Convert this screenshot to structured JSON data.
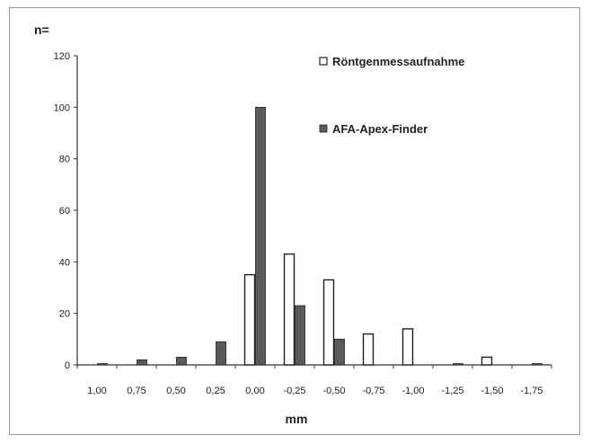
{
  "chart_data": {
    "type": "bar",
    "ylabel": "n=",
    "xlabel": "mm",
    "categories": [
      "1,00",
      "0,75",
      "0,50",
      "0,25",
      "0,00",
      "-0,25",
      "-0,50",
      "-0,75",
      "-1,00",
      "-1,25",
      "-1,50",
      "-1,75"
    ],
    "y_ticks": [
      "0",
      "20",
      "40",
      "60",
      "80",
      "100",
      "120"
    ],
    "ylim": [
      0,
      120
    ],
    "grid": false,
    "legend_position": "top-right",
    "series": [
      {
        "name": "Röntgenmessaufnahme",
        "color": "#ffffff",
        "values": [
          0,
          0,
          0,
          0,
          35,
          43,
          33,
          12,
          14,
          0,
          3,
          0
        ]
      },
      {
        "name": "AFA-Apex-Finder",
        "color": "#5a5a5a",
        "values": [
          0.5,
          2,
          3,
          9,
          100,
          23,
          10,
          0,
          0,
          0.5,
          0,
          0.5
        ]
      }
    ]
  }
}
